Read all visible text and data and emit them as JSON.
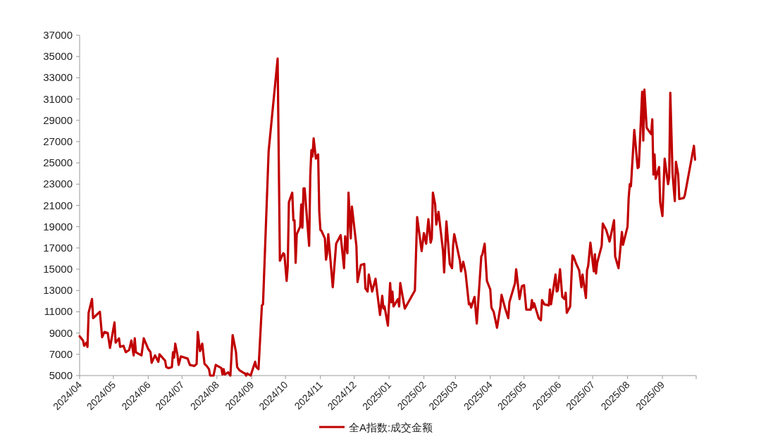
{
  "chart_data": {
    "type": "line",
    "x": [
      "2024-04-01",
      "2024-04-04",
      "2024-04-05",
      "2024-04-07",
      "2024-04-08",
      "2024-04-09",
      "2024-04-12",
      "2024-04-13",
      "2024-04-19",
      "2024-04-21",
      "2024-04-23",
      "2024-04-26",
      "2024-04-28",
      "2024-05-02",
      "2024-05-03",
      "2024-05-06",
      "2024-05-07",
      "2024-05-10",
      "2024-05-12",
      "2024-05-15",
      "2024-05-17",
      "2024-05-19",
      "2024-05-20",
      "2024-05-21",
      "2024-05-26",
      "2024-05-28",
      "2024-06-01",
      "2024-06-03",
      "2024-06-04",
      "2024-06-07",
      "2024-06-10",
      "2024-06-11",
      "2024-06-16",
      "2024-06-17",
      "2024-06-19",
      "2024-06-22",
      "2024-06-23",
      "2024-06-24",
      "2024-06-25",
      "2024-06-27",
      "2024-06-28",
      "2024-06-30",
      "2024-07-06",
      "2024-07-08",
      "2024-07-12",
      "2024-07-14",
      "2024-07-15",
      "2024-07-17",
      "2024-07-19",
      "2024-07-21",
      "2024-07-23",
      "2024-07-25",
      "2024-07-26",
      "2024-07-29",
      "2024-07-31",
      "2024-08-05",
      "2024-08-06",
      "2024-08-07",
      "2024-08-08",
      "2024-08-11",
      "2024-08-13",
      "2024-08-15",
      "2024-08-18",
      "2024-08-19",
      "2024-08-21",
      "2024-08-24",
      "2024-08-26",
      "2024-08-27",
      "2024-08-28",
      "2024-08-31",
      "2024-09-04",
      "2024-09-05",
      "2024-09-07",
      "2024-09-09",
      "2024-09-10",
      "2024-09-11",
      "2024-09-16",
      "2024-09-24",
      "2024-09-26",
      "2024-09-29",
      "2024-09-30",
      "2024-10-02",
      "2024-10-03",
      "2024-10-04",
      "2024-10-07",
      "2024-10-08",
      "2024-10-09",
      "2024-10-10",
      "2024-10-11",
      "2024-10-14",
      "2024-10-15",
      "2024-10-16",
      "2024-10-17",
      "2024-10-18",
      "2024-10-22",
      "2024-10-23",
      "2024-10-24",
      "2024-10-25",
      "2024-10-26",
      "2024-10-28",
      "2024-10-30",
      "2024-10-31",
      "2024-11-01",
      "2024-11-02",
      "2024-11-05",
      "2024-11-06",
      "2024-11-07",
      "2024-11-08",
      "2024-11-12",
      "2024-11-15",
      "2024-11-19",
      "2024-11-22",
      "2024-11-23",
      "2024-11-25",
      "2024-11-26",
      "2024-11-28",
      "2024-11-29",
      "2024-12-03",
      "2024-12-04",
      "2024-12-07",
      "2024-12-10",
      "2024-12-11",
      "2024-12-13",
      "2024-12-14",
      "2024-12-17",
      "2024-12-20",
      "2024-12-24",
      "2024-12-26",
      "2024-12-27",
      "2024-12-28",
      "2024-12-31",
      "2025-01-02",
      "2025-01-03",
      "2025-01-04",
      "2025-01-05",
      "2025-01-09",
      "2025-01-10",
      "2025-01-11",
      "2025-01-15",
      "2025-01-24",
      "2025-01-26",
      "2025-01-30",
      "2025-02-01",
      "2025-02-03",
      "2025-02-05",
      "2025-02-07",
      "2025-02-08",
      "2025-02-09",
      "2025-02-11",
      "2025-02-12",
      "2025-02-14",
      "2025-02-18",
      "2025-02-19",
      "2025-02-21",
      "2025-02-24",
      "2025-02-26",
      "2025-02-27",
      "2025-02-28",
      "2025-03-05",
      "2025-03-06",
      "2025-03-08",
      "2025-03-10",
      "2025-03-13",
      "2025-03-14",
      "2025-03-15",
      "2025-03-18",
      "2025-03-20",
      "2025-03-24",
      "2025-03-25",
      "2025-03-27",
      "2025-03-29",
      "2025-04-01",
      "2025-04-02",
      "2025-04-04",
      "2025-04-07",
      "2025-04-10",
      "2025-04-11",
      "2025-04-14",
      "2025-04-17",
      "2025-04-18",
      "2025-04-23",
      "2025-04-24",
      "2025-04-27",
      "2025-04-29",
      "2025-05-01",
      "2025-05-03",
      "2025-05-07",
      "2025-05-08",
      "2025-05-09",
      "2025-05-10",
      "2025-05-14",
      "2025-05-16",
      "2025-05-17",
      "2025-05-19",
      "2025-05-23",
      "2025-05-24",
      "2025-05-25",
      "2025-05-29",
      "2025-05-30",
      "2025-05-31",
      "2025-06-02",
      "2025-06-04",
      "2025-06-06",
      "2025-06-07",
      "2025-06-08",
      "2025-06-11",
      "2025-06-13",
      "2025-06-14",
      "2025-06-16",
      "2025-06-19",
      "2025-06-21",
      "2025-06-22",
      "2025-06-25",
      "2025-06-26",
      "2025-06-27",
      "2025-06-29",
      "2025-07-02",
      "2025-07-03",
      "2025-07-04",
      "2025-07-05",
      "2025-07-09",
      "2025-07-10",
      "2025-07-13",
      "2025-07-15",
      "2025-07-16",
      "2025-07-18",
      "2025-07-20",
      "2025-07-21",
      "2025-07-24",
      "2025-07-27",
      "2025-07-28",
      "2025-08-01",
      "2025-08-02",
      "2025-08-03",
      "2025-08-04",
      "2025-08-07",
      "2025-08-10",
      "2025-08-11",
      "2025-08-14",
      "2025-08-15",
      "2025-08-16",
      "2025-08-18",
      "2025-08-22",
      "2025-08-23",
      "2025-08-24",
      "2025-08-25",
      "2025-08-26",
      "2025-08-29",
      "2025-08-30",
      "2025-09-01",
      "2025-09-03",
      "2025-09-06",
      "2025-09-07",
      "2025-09-08",
      "2025-09-10",
      "2025-09-12",
      "2025-09-13",
      "2025-09-15",
      "2025-09-16",
      "2025-09-20",
      "2025-09-21",
      "2025-09-29",
      "2025-09-30"
    ],
    "series": [
      {
        "name": "全A指数:成交金额",
        "color": "#c00000",
        "values": [
          8700,
          8300,
          7800,
          8100,
          7700,
          10900,
          12200,
          10400,
          11000,
          8600,
          9100,
          9000,
          7600,
          10000,
          8100,
          8500,
          7700,
          7800,
          7200,
          7400,
          8300,
          6900,
          8500,
          7200,
          6900,
          8500,
          7500,
          7200,
          6200,
          6900,
          6300,
          7000,
          6400,
          5800,
          5700,
          5800,
          7200,
          6700,
          8000,
          6900,
          6000,
          6800,
          6600,
          6000,
          5900,
          6100,
          9100,
          7300,
          8000,
          6100,
          5900,
          5600,
          5000,
          5000,
          6000,
          5700,
          5100,
          5600,
          5100,
          5300,
          5000,
          8800,
          7200,
          5800,
          5500,
          5300,
          5200,
          5000,
          5200,
          5000,
          6300,
          5800,
          5600,
          9600,
          11600,
          11700,
          26100,
          34800,
          15800,
          16500,
          16400,
          13900,
          15300,
          21300,
          22200,
          19600,
          19600,
          15600,
          18300,
          19000,
          21100,
          18900,
          22600,
          22600,
          17200,
          23800,
          26200,
          25600,
          27300,
          25400,
          25800,
          20400,
          18700,
          18600,
          17900,
          15900,
          16500,
          18300,
          13300,
          17400,
          18200,
          15100,
          18100,
          16500,
          22200,
          17900,
          20900,
          17200,
          13800,
          15400,
          15500,
          13200,
          12900,
          14500,
          12900,
          14100,
          10700,
          12500,
          11300,
          11500,
          9700,
          13700,
          11900,
          12900,
          11500,
          12200,
          11500,
          13700,
          11300,
          13000,
          19900,
          16700,
          18400,
          17400,
          19700,
          17500,
          17900,
          22200,
          21100,
          19200,
          20400,
          16700,
          14700,
          19500,
          15500,
          15100,
          17300,
          18300,
          15800,
          14800,
          15700,
          14700,
          11700,
          11800,
          11400,
          12400,
          9900,
          16200,
          16400,
          17400,
          13900,
          13100,
          11400,
          11000,
          9500,
          11500,
          12600,
          11400,
          10400,
          11900,
          13700,
          15000,
          12200,
          13400,
          13500,
          11200,
          11200,
          12100,
          11400,
          11800,
          10400,
          10200,
          12100,
          11700,
          11600,
          13100,
          11700,
          14500,
          12900,
          13000,
          15000,
          12400,
          12200,
          12800,
          10900,
          11500,
          16300,
          16200,
          15600,
          14900,
          13300,
          14500,
          12300,
          14900,
          15300,
          17500,
          14800,
          16400,
          14600,
          15600,
          17200,
          19300,
          18700,
          18000,
          17600,
          18600,
          19600,
          16200,
          15100,
          18500,
          17300,
          19000,
          21700,
          23000,
          22800,
          28100,
          24500,
          24600,
          31700,
          27100,
          31900,
          28300,
          27700,
          29100,
          23900,
          25800,
          23500,
          24600,
          21300,
          20000,
          25400,
          23000,
          23600,
          31600,
          24000,
          21400,
          25100,
          23900,
          21600,
          21700,
          22000,
          26600,
          25300
        ]
      }
    ],
    "xlim": [
      "2024-04-01",
      "2025-10-01"
    ],
    "xticks": [
      {
        "value": "2024-04",
        "label": "2024/04"
      },
      {
        "value": "2024-05",
        "label": "2024/05"
      },
      {
        "value": "2024-06",
        "label": "2024/06"
      },
      {
        "value": "2024-07",
        "label": "2024/07"
      },
      {
        "value": "2024-08",
        "label": "2024/08"
      },
      {
        "value": "2024-09",
        "label": "2024/09"
      },
      {
        "value": "2024-10",
        "label": "2024/10"
      },
      {
        "value": "2024-11",
        "label": "2024/11"
      },
      {
        "value": "2024-12",
        "label": "2024/12"
      },
      {
        "value": "2025-01",
        "label": "2025/01"
      },
      {
        "value": "2025-02",
        "label": "2025/02"
      },
      {
        "value": "2025-03",
        "label": "2025/03"
      },
      {
        "value": "2025-04",
        "label": "2025/04"
      },
      {
        "value": "2025-05",
        "label": "2025/05"
      },
      {
        "value": "2025-06",
        "label": "2025/06"
      },
      {
        "value": "2025-07",
        "label": "2025/07"
      },
      {
        "value": "2025-08",
        "label": "2025/08"
      },
      {
        "value": "2025-09",
        "label": "2025/09"
      },
      {
        "value": "2025-10",
        "label": null
      }
    ],
    "ylim": [
      5000,
      37000
    ],
    "yticks": [
      5000,
      7000,
      9000,
      11000,
      13000,
      15000,
      17000,
      19000,
      21000,
      23000,
      25000,
      27000,
      29000,
      31000,
      33000,
      35000,
      37000
    ],
    "legend": "bottom"
  }
}
